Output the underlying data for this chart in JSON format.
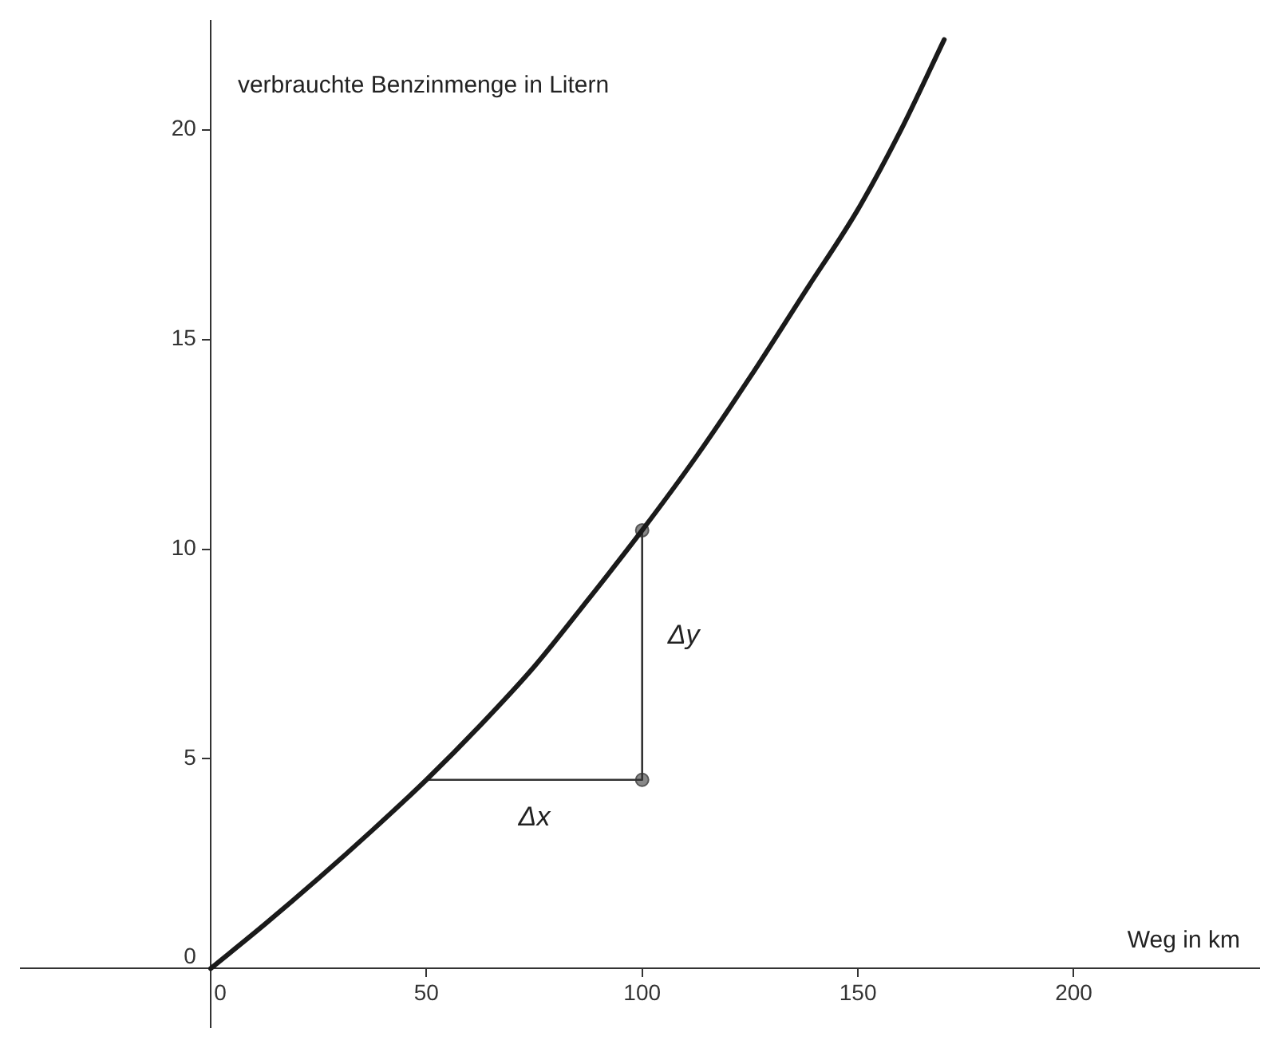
{
  "chart_data": {
    "type": "line",
    "xlabel": "Weg in km",
    "ylabel": "verbrauchte Benzinmenge in Litern",
    "xlim": [
      -44,
      243
    ],
    "ylim": [
      -1.4,
      22.6
    ],
    "xticks": [
      0,
      50,
      100,
      150,
      200
    ],
    "yticks": [
      0,
      5,
      10,
      15,
      20
    ],
    "grid": false,
    "legend": false,
    "marker": "none",
    "line_style": "solid",
    "series": [
      {
        "color": "#1a1a1a",
        "x": [
          0,
          12.5,
          25,
          37.5,
          50,
          62.5,
          75,
          87.5,
          100,
          112.5,
          125,
          137.5,
          150,
          160,
          170
        ],
        "values": [
          0,
          1.05,
          2.15,
          3.3,
          4.5,
          5.8,
          7.2,
          8.8,
          10.45,
          12.2,
          14.1,
          16.1,
          18.1,
          20.0,
          22.15
        ]
      },
      {
        "color": "#333333",
        "x": [
          50,
          100,
          100
        ],
        "values": [
          4.5,
          4.5,
          10.45
        ]
      },
      {
        "type": "scatter",
        "color": "#888888",
        "marker": "circle",
        "x": [
          100,
          100
        ],
        "values": [
          4.5,
          10.45
        ]
      }
    ],
    "annotations": [
      "Δx",
      "Δy"
    ]
  }
}
